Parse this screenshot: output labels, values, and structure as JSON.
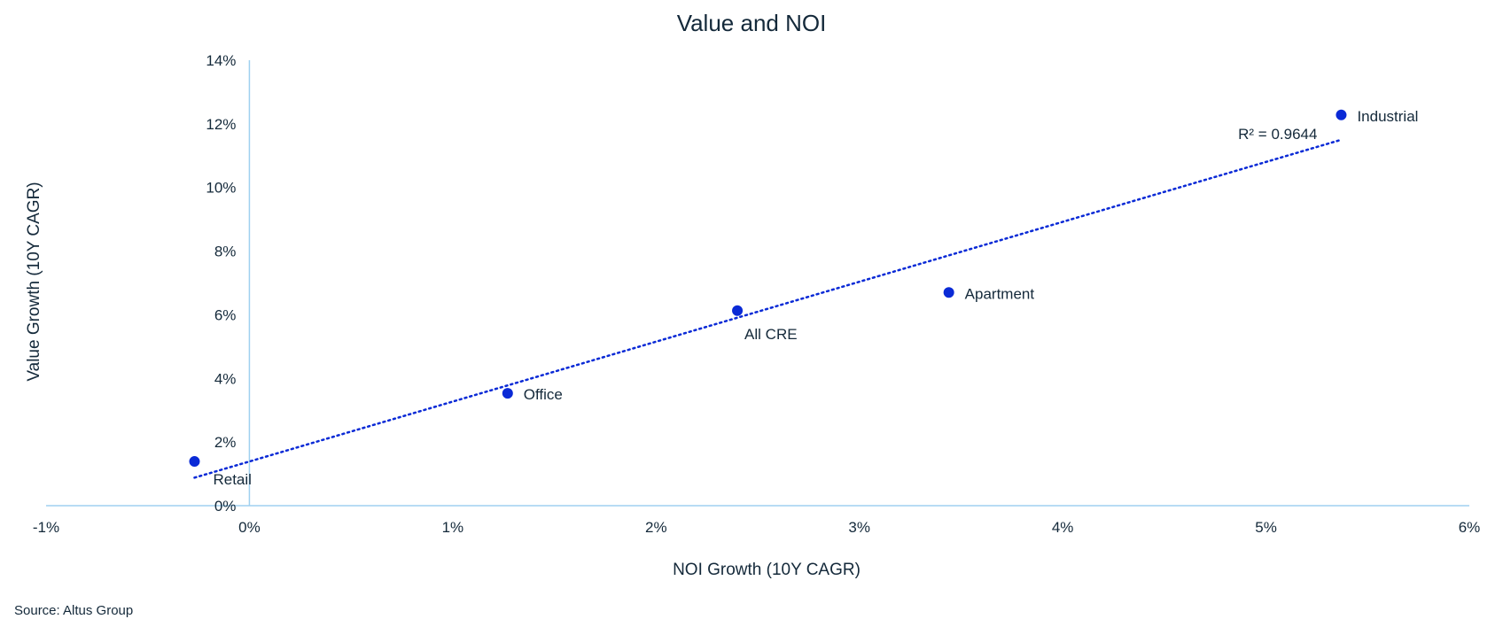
{
  "chart_data": {
    "type": "scatter",
    "title": "Value and NOI",
    "xlabel": "NOI Growth (10Y CAGR)",
    "ylabel": "Value  Growth (10Y CAGR)",
    "xlim": [
      -1,
      6
    ],
    "ylim": [
      0,
      14
    ],
    "x_ticks": [
      -1,
      0,
      1,
      2,
      3,
      4,
      5,
      6
    ],
    "y_ticks": [
      0,
      2,
      4,
      6,
      8,
      10,
      12,
      14
    ],
    "x_tick_labels": [
      "-1%",
      "0%",
      "1%",
      "2%",
      "3%",
      "4%",
      "5%",
      "6%"
    ],
    "y_tick_labels": [
      "0%",
      "2%",
      "4%",
      "6%",
      "8%",
      "10%",
      "12%",
      "14%"
    ],
    "grid": false,
    "points": [
      {
        "label": "Retail",
        "x": -0.27,
        "y": 1.39
      },
      {
        "label": "Office",
        "x": 1.27,
        "y": 3.53
      },
      {
        "label": "All CRE",
        "x": 2.4,
        "y": 6.13
      },
      {
        "label": "Apartment",
        "x": 3.44,
        "y": 6.7
      },
      {
        "label": "Industrial",
        "x": 5.37,
        "y": 12.28
      }
    ],
    "trendline": {
      "type": "linear",
      "x": [
        -0.27,
        5.37
      ],
      "y": [
        0.88,
        11.5
      ],
      "r2_label": "R² = 0.9644"
    },
    "colors": {
      "point": "#0a2ad6",
      "axis": "#9fd0f0",
      "text": "#14293a"
    }
  },
  "source": "Source: Altus Group"
}
